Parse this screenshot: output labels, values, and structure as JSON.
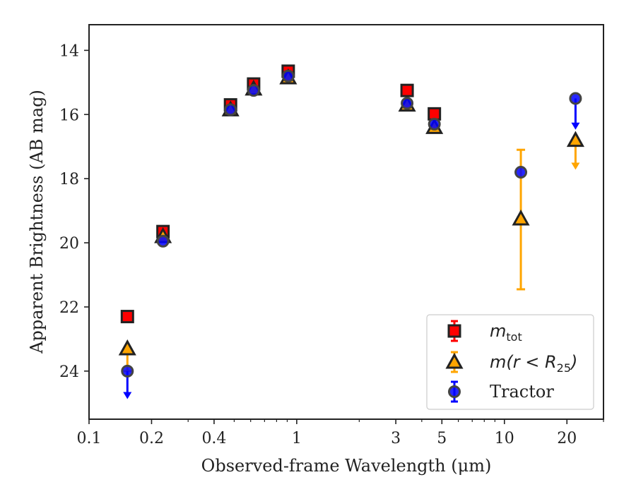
{
  "chart_data": {
    "type": "scatter",
    "xlabel": "Observed-frame Wavelength (μm)",
    "ylabel": "Apparent Brightness (AB mag)",
    "x_scale": "log",
    "y_inverted": true,
    "xlim": [
      0.1,
      30
    ],
    "ylim": [
      25.5,
      13.2
    ],
    "x_ticks": [
      {
        "value": 0.1,
        "label": "0.1"
      },
      {
        "value": 0.2,
        "label": "0.2"
      },
      {
        "value": 0.4,
        "label": "0.4"
      },
      {
        "value": 1,
        "label": "1"
      },
      {
        "value": 3,
        "label": "3"
      },
      {
        "value": 5,
        "label": "5"
      },
      {
        "value": 10,
        "label": "10"
      },
      {
        "value": 20,
        "label": "20"
      }
    ],
    "x_minor_ticks": [
      0.3,
      0.5,
      0.6,
      0.7,
      0.8,
      0.9,
      2,
      4,
      6,
      7,
      8,
      9,
      30
    ],
    "y_ticks": [
      14,
      16,
      18,
      20,
      22,
      24
    ],
    "grid": false,
    "legend_position": "bottom-right",
    "series": [
      {
        "name": "m_tot",
        "label_parts": {
          "main": "m",
          "sub": "tot"
        },
        "marker": "square",
        "color": "#ff0000",
        "edge_color": "#222222",
        "points": [
          {
            "x": 0.153,
            "y": 22.3
          },
          {
            "x": 0.227,
            "y": 19.65
          },
          {
            "x": 0.48,
            "y": 15.7
          },
          {
            "x": 0.62,
            "y": 15.05
          },
          {
            "x": 0.91,
            "y": 14.65
          },
          {
            "x": 3.4,
            "y": 15.25
          },
          {
            "x": 4.6,
            "y": 15.98
          }
        ]
      },
      {
        "name": "m(r < R25)",
        "label_parts": {
          "main": "m(r < R",
          "sub": "25",
          "close": ")"
        },
        "marker": "triangle",
        "color": "#ffa500",
        "edge_color": "#222222",
        "points": [
          {
            "x": 0.153,
            "y": 23.3,
            "y_err_low": 23.3,
            "y_err_high": 24.0
          },
          {
            "x": 0.227,
            "y": 19.8
          },
          {
            "x": 0.48,
            "y": 15.85
          },
          {
            "x": 0.62,
            "y": 15.2
          },
          {
            "x": 0.91,
            "y": 14.85
          },
          {
            "x": 3.4,
            "y": 15.7
          },
          {
            "x": 4.6,
            "y": 16.4
          },
          {
            "x": 12.0,
            "y": 19.25,
            "y_err_low": 17.1,
            "y_err_high": 21.45
          },
          {
            "x": 22.0,
            "y": 16.8,
            "upper_limit": true,
            "arrow_to": 17.7
          }
        ]
      },
      {
        "name": "Tractor",
        "label_parts": {
          "main": "Tractor"
        },
        "marker": "circle",
        "color": "#0000ff",
        "edge_color": "#444444",
        "points": [
          {
            "x": 0.153,
            "y": 24.0,
            "upper_limit": true,
            "arrow_to": 24.85
          },
          {
            "x": 0.227,
            "y": 19.95
          },
          {
            "x": 0.48,
            "y": 15.85
          },
          {
            "x": 0.62,
            "y": 15.25
          },
          {
            "x": 0.91,
            "y": 14.8
          },
          {
            "x": 3.4,
            "y": 15.65
          },
          {
            "x": 4.6,
            "y": 16.3
          },
          {
            "x": 12.0,
            "y": 17.8
          },
          {
            "x": 22.0,
            "y": 15.5,
            "upper_limit": true,
            "arrow_to": 16.45
          }
        ]
      }
    ]
  }
}
